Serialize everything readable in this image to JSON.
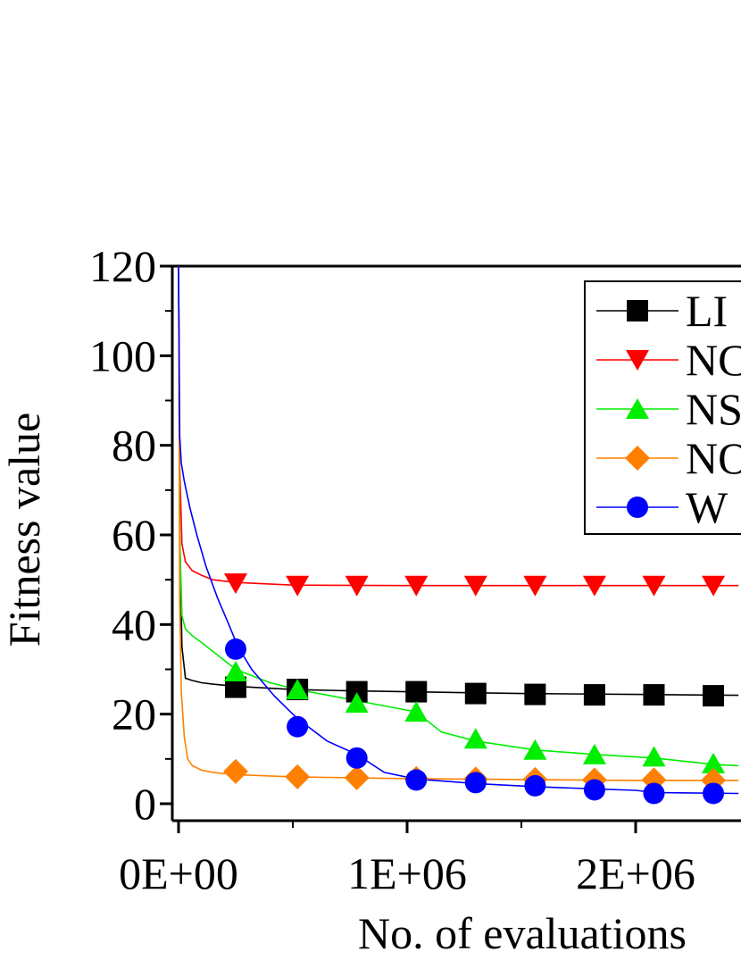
{
  "chart_data": {
    "type": "line",
    "xlabel": "No. of evaluations",
    "ylabel": "Fitness value",
    "xlim": [
      0,
      2450000
    ],
    "ylim": [
      0,
      120
    ],
    "x_ticks": [
      0,
      1000000,
      2000000
    ],
    "x_tick_labels": [
      "0E+00",
      "1E+06",
      "2E+06"
    ],
    "y_ticks": [
      0,
      20,
      40,
      60,
      80,
      100,
      120
    ],
    "y_tick_labels": [
      "0",
      "20",
      "40",
      "60",
      "80",
      "100",
      "120"
    ],
    "legend_position": "top-right",
    "series": [
      {
        "name": "LI",
        "color": "#000000",
        "marker": "square",
        "line_x": [
          0,
          5000,
          15000,
          30000,
          60000,
          100000,
          150000,
          250000,
          500000,
          750000,
          1000000,
          1500000,
          2000000,
          2450000
        ],
        "line_y": [
          120,
          60,
          35,
          28,
          27.5,
          27,
          26.7,
          26.2,
          25.5,
          25.2,
          25,
          24.6,
          24.4,
          24.2
        ],
        "marker_x": [
          250000,
          520000,
          780000,
          1040000,
          1300000,
          1560000,
          1820000,
          2080000,
          2340000
        ],
        "marker_y": [
          26.0,
          25.5,
          25.0,
          25.0,
          24.6,
          24.4,
          24.3,
          24.3,
          24.1
        ]
      },
      {
        "name": "NC",
        "color": "#ff0000",
        "marker": "triangle-down",
        "line_x": [
          0,
          5000,
          15000,
          30000,
          60000,
          100000,
          150000,
          250000,
          500000,
          1000000,
          2000000,
          2450000
        ],
        "line_y": [
          120,
          75,
          58,
          54,
          52,
          51,
          50,
          49.4,
          48.8,
          48.7,
          48.7,
          48.7
        ],
        "marker_x": [
          250000,
          520000,
          780000,
          1040000,
          1300000,
          1560000,
          1820000,
          2080000,
          2340000
        ],
        "marker_y": [
          49.2,
          48.7,
          48.7,
          48.7,
          48.7,
          48.7,
          48.7,
          48.7,
          48.7
        ]
      },
      {
        "name": "NS",
        "color": "#00ee00",
        "marker": "triangle-up",
        "line_x": [
          0,
          5000,
          15000,
          30000,
          60000,
          100000,
          150000,
          250000,
          400000,
          520000,
          780000,
          1040000,
          1150000,
          1300000,
          1560000,
          1820000,
          2080000,
          2340000,
          2450000
        ],
        "line_y": [
          120,
          60,
          42,
          39,
          37.5,
          36,
          34,
          30,
          27,
          25.5,
          23,
          20.5,
          16,
          14,
          12,
          11,
          10.2,
          8.8,
          8.5
        ],
        "marker_x": [
          250000,
          520000,
          780000,
          1040000,
          1300000,
          1560000,
          1820000,
          2080000,
          2340000
        ],
        "marker_y": [
          29.5,
          25.5,
          22.5,
          20.5,
          14.5,
          12.0,
          11.0,
          10.5,
          9.0
        ]
      },
      {
        "name": "NO",
        "color": "#ff8000",
        "marker": "diamond",
        "line_x": [
          0,
          5000,
          12000,
          25000,
          40000,
          60000,
          100000,
          150000,
          250000,
          500000,
          1000000,
          2000000,
          2450000
        ],
        "line_y": [
          120,
          45,
          25,
          15,
          10,
          8.5,
          7.5,
          7,
          6.5,
          6,
          5.6,
          5.2,
          5.2
        ],
        "marker_x": [
          250000,
          520000,
          780000,
          1040000,
          1300000,
          1560000,
          1820000,
          2080000,
          2340000
        ],
        "marker_y": [
          7.2,
          6.0,
          5.8,
          5.6,
          5.5,
          5.4,
          5.3,
          5.3,
          5.2
        ]
      },
      {
        "name": "W",
        "color": "#0000ff",
        "marker": "circle",
        "line_x": [
          0,
          5000,
          12000,
          25000,
          50000,
          80000,
          120000,
          170000,
          220000,
          260000,
          320000,
          420000,
          520000,
          650000,
          780000,
          900000,
          1040000,
          1300000,
          1560000,
          1820000,
          2000000,
          2080000,
          2450000
        ],
        "line_y": [
          120,
          82,
          76,
          72,
          66,
          60,
          53,
          46,
          40,
          35,
          30,
          24,
          19,
          14,
          11,
          7,
          5.5,
          4.5,
          3.8,
          3.3,
          3,
          2.5,
          2.3
        ],
        "marker_x": [
          250000,
          520000,
          780000,
          1040000,
          1300000,
          1560000,
          1820000,
          2080000,
          2340000
        ],
        "marker_y": [
          34.5,
          17.2,
          10.2,
          5.3,
          4.7,
          4.0,
          3.1,
          2.3,
          2.3
        ]
      }
    ]
  }
}
